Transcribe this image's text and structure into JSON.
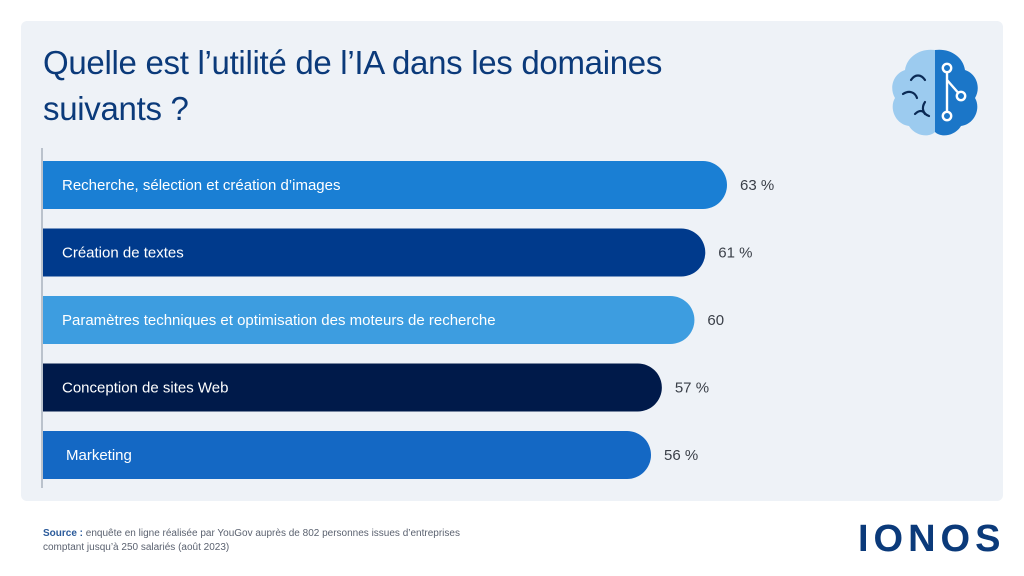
{
  "title": "Quelle est l’utilité de l’IA dans les domaines suivants ?",
  "colors": {
    "background": "#ffffff",
    "card": "#eef2f7",
    "title": "#0b3a7a",
    "axis": "#a9b2bd",
    "brand": "#0b3a7a"
  },
  "icon": "brain-circuit-icon",
  "chart_data": {
    "type": "bar",
    "orientation": "horizontal",
    "categories": [
      "Recherche, sélection et création d’images",
      "Création de textes",
      "Paramètres techniques et optimisation des moteurs de recherche",
      "Conception de sites Web",
      "Marketing"
    ],
    "values": [
      63,
      61,
      60,
      57,
      56
    ],
    "value_labels": [
      "63 %",
      "61 %",
      "60",
      "57 %",
      "56 %"
    ],
    "bar_colors": [
      "#1a7fd4",
      "#003a8c",
      "#3d9de0",
      "#001a4a",
      "#1468c4"
    ],
    "xlim": [
      0,
      63
    ],
    "grid": false,
    "legend": "none"
  },
  "source": {
    "prefix": "Source :",
    "text": "enquête en ligne réalisée par YouGov auprès de 802 personnes issues d’entreprises comptant jusqu’à 250 salariés (août 2023)"
  },
  "logo_text": "IONOS"
}
